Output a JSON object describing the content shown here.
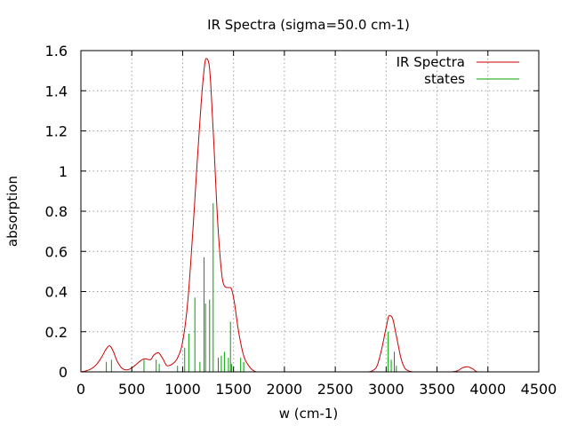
{
  "chart_data": {
    "type": "line",
    "title": "IR Spectra (sigma=50.0 cm-1)",
    "xlabel": "w (cm-1)",
    "ylabel": "absorption",
    "xlim": [
      0,
      4500
    ],
    "ylim": [
      0,
      1.6
    ],
    "x_ticks": [
      "0",
      "500",
      "1000",
      "1500",
      "2000",
      "2500",
      "3000",
      "3500",
      "4000",
      "4500"
    ],
    "y_ticks": [
      "0",
      "0.2",
      "0.4",
      "0.6",
      "0.8",
      "1",
      "1.2",
      "1.4",
      "1.6"
    ],
    "grid": true,
    "legend_position": "top-right",
    "series": [
      {
        "name": "IR Spectra",
        "color": "#cc0000",
        "kind": "line",
        "x": [
          0,
          50,
          100,
          150,
          200,
          250,
          280,
          320,
          350,
          400,
          450,
          500,
          550,
          600,
          630,
          680,
          720,
          760,
          800,
          850,
          900,
          950,
          1000,
          1050,
          1100,
          1150,
          1200,
          1230,
          1260,
          1300,
          1350,
          1400,
          1440,
          1470,
          1500,
          1550,
          1600,
          1650,
          1700,
          1750,
          1800,
          2000,
          2500,
          2800,
          2900,
          2950,
          3000,
          3030,
          3060,
          3100,
          3150,
          3200,
          3300,
          3600,
          3700,
          3750,
          3800,
          3850,
          3900,
          4000,
          4500
        ],
        "y": [
          0.0,
          0.005,
          0.015,
          0.035,
          0.07,
          0.115,
          0.13,
          0.1,
          0.06,
          0.02,
          0.01,
          0.02,
          0.04,
          0.06,
          0.065,
          0.06,
          0.085,
          0.095,
          0.07,
          0.03,
          0.04,
          0.07,
          0.15,
          0.35,
          0.7,
          1.1,
          1.45,
          1.56,
          1.53,
          1.2,
          0.7,
          0.44,
          0.42,
          0.42,
          0.37,
          0.2,
          0.08,
          0.03,
          0.005,
          0.0,
          0.0,
          0.0,
          0.0,
          0.0,
          0.02,
          0.1,
          0.22,
          0.28,
          0.27,
          0.18,
          0.06,
          0.01,
          0.0,
          0.0,
          0.005,
          0.02,
          0.025,
          0.015,
          0.0,
          0.0,
          0.0
        ]
      },
      {
        "name": "states",
        "color": "#00a000",
        "kind": "impulses",
        "x": [
          250,
          300,
          620,
          740,
          770,
          950,
          1020,
          1060,
          1120,
          1170,
          1210,
          1225,
          1265,
          1300,
          1350,
          1380,
          1410,
          1450,
          1470,
          1480,
          1570,
          1600,
          3020,
          3050,
          3080,
          3100
        ],
        "y": [
          0.05,
          0.06,
          0.06,
          0.06,
          0.04,
          0.03,
          0.12,
          0.19,
          0.37,
          0.05,
          0.57,
          0.34,
          0.36,
          0.84,
          0.07,
          0.08,
          0.1,
          0.07,
          0.25,
          0.04,
          0.07,
          0.05,
          0.2,
          0.06,
          0.1,
          0.03
        ]
      }
    ]
  }
}
